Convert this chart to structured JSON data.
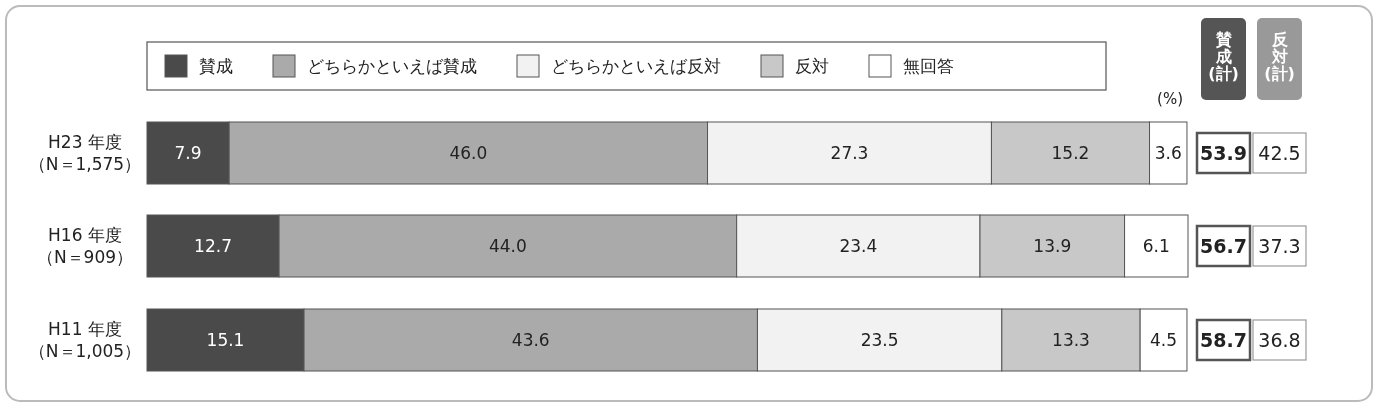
{
  "chart_data": [
    {
      "type": "bar",
      "orientation": "horizontal",
      "stacked": true,
      "legend": "top",
      "grid": false,
      "categories": [
        "H23 年度（N＝1,575）",
        "H16 年度（N＝909）",
        "H11 年度（N＝1,005）"
      ],
      "series": [
        {
          "name": "賛成",
          "color": "#4a4a4a",
          "values": [
            7.9,
            12.7,
            15.1
          ],
          "value_labels": [
            "7.9",
            "12.7",
            "15.1"
          ]
        },
        {
          "name": "どちらかといえば賛成",
          "color": "#aaaaaa",
          "values": [
            46.0,
            44.0,
            43.6
          ],
          "value_labels": [
            "46.0",
            "44.0",
            "43.6"
          ]
        },
        {
          "name": "どちらかといえば反対",
          "color": "#f2f2f2",
          "values": [
            27.3,
            23.4,
            23.5
          ],
          "value_labels": [
            "27.3",
            "23.4",
            "23.5"
          ]
        },
        {
          "name": "反対",
          "color": "#c8c8c8",
          "values": [
            15.2,
            13.9,
            13.3
          ],
          "value_labels": [
            "15.2",
            "13.9",
            "13.3"
          ]
        },
        {
          "name": "無回答",
          "color": "#ffffff",
          "values": [
            3.6,
            6.1,
            4.5
          ],
          "value_labels": [
            "3.6",
            "6.1",
            "4.5"
          ]
        }
      ],
      "annotations": [
        "(%)"
      ]
    },
    {
      "type": "other",
      "annotations": [
        "賛成(計)",
        "反対(計)",
        "53.9",
        "42.5",
        "56.7",
        "37.3",
        "58.7",
        "36.8"
      ]
    }
  ]
}
